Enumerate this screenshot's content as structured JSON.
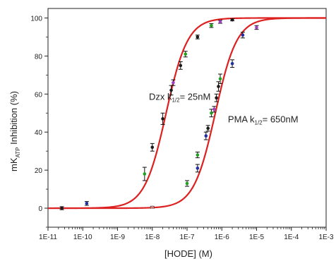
{
  "chart_data": {
    "type": "scatter",
    "title": "",
    "xlabel": "[HODE] (M)",
    "ylabel_main": "mK",
    "ylabel_sub": "ATP",
    "ylabel_tail": " Inhibition (%)",
    "x_scale": "log",
    "xlim": [
      1e-11,
      0.001
    ],
    "ylim": [
      -10,
      105
    ],
    "x_ticks": [
      1e-11,
      1e-10,
      1e-09,
      1e-08,
      1e-07,
      1e-06,
      1e-05,
      0.0001,
      0.001
    ],
    "x_tick_labels": [
      "1E-11",
      "1E-10",
      "1E-9",
      "1E-8",
      "1E-7",
      "1E-6",
      "1E-5",
      "1E-4",
      "1E-3"
    ],
    "y_ticks": [
      0,
      20,
      40,
      60,
      80,
      100
    ],
    "y_tick_labels": [
      "0",
      "20",
      "40",
      "60",
      "80",
      "100"
    ],
    "grid": false,
    "curve_color": "#dd2020",
    "annotations": [
      {
        "id": "dzx",
        "prefix": "Dzx k",
        "sub": "1/2",
        "suffix": "= 25nM",
        "x": 8e-09,
        "y": 57
      },
      {
        "id": "pma",
        "prefix": "PMA k",
        "sub": "1/2",
        "suffix": "= 650nM",
        "x": 1.5e-06,
        "y": 45
      }
    ],
    "series": [
      {
        "name": "Dzx",
        "k_half": 2.5e-08,
        "hill": 1.4,
        "points": [
          {
            "x": 2.5e-11,
            "y": 0,
            "err": 0.8,
            "color": "#1a1a1a"
          },
          {
            "x": 1.3e-10,
            "y": 2.5,
            "err": 1.0,
            "color": "#2030a0"
          },
          {
            "x": 6e-09,
            "y": 18,
            "err": 3.5,
            "color": "#20a020"
          },
          {
            "x": 1e-08,
            "y": 32,
            "err": 2.0,
            "color": "#1a1a1a"
          },
          {
            "x": 2e-08,
            "y": 47,
            "err": 3.0,
            "color": "#1a1a1a"
          },
          {
            "x": 3.5e-08,
            "y": 62,
            "err": 2.5,
            "color": "#1a1a1a"
          },
          {
            "x": 4e-08,
            "y": 66,
            "err": 1.5,
            "color": "#a040c0"
          },
          {
            "x": 6.5e-08,
            "y": 75,
            "err": 2.0,
            "color": "#1a1a1a"
          },
          {
            "x": 9e-08,
            "y": 81,
            "err": 1.5,
            "color": "#20a020"
          },
          {
            "x": 2e-07,
            "y": 90,
            "err": 1.0,
            "color": "#1a1a1a"
          },
          {
            "x": 5e-07,
            "y": 96,
            "err": 1.0,
            "color": "#20a020"
          },
          {
            "x": 9e-07,
            "y": 98,
            "err": 0.8,
            "color": "#a040c0"
          },
          {
            "x": 2e-06,
            "y": 99,
            "err": 0.5,
            "color": "#1a1a1a"
          }
        ]
      },
      {
        "name": "PMA",
        "k_half": 6.5e-07,
        "hill": 1.4,
        "points": [
          {
            "x": 1e-08,
            "y": 0.5,
            "err": 0.5,
            "color": "#c08080"
          },
          {
            "x": 1e-07,
            "y": 13,
            "err": 1.5,
            "color": "#20a020"
          },
          {
            "x": 2e-07,
            "y": 21,
            "err": 2.0,
            "color": "#2030a0"
          },
          {
            "x": 2e-07,
            "y": 28,
            "err": 1.5,
            "color": "#20a020"
          },
          {
            "x": 3.5e-07,
            "y": 38,
            "err": 2.0,
            "color": "#2030a0"
          },
          {
            "x": 4e-07,
            "y": 42,
            "err": 1.5,
            "color": "#1a1a1a"
          },
          {
            "x": 5e-07,
            "y": 50,
            "err": 2.0,
            "color": "#20a020"
          },
          {
            "x": 6e-07,
            "y": 52,
            "err": 1.5,
            "color": "#a040c0"
          },
          {
            "x": 7e-07,
            "y": 58,
            "err": 2.0,
            "color": "#1a1a1a"
          },
          {
            "x": 8e-07,
            "y": 64,
            "err": 2.5,
            "color": "#1a1a1a"
          },
          {
            "x": 9e-07,
            "y": 68,
            "err": 2.5,
            "color": "#20a020"
          },
          {
            "x": 2e-06,
            "y": 76,
            "err": 2.0,
            "color": "#2030a0"
          },
          {
            "x": 4e-06,
            "y": 91,
            "err": 1.5,
            "color": "#2030a0"
          },
          {
            "x": 1e-05,
            "y": 95,
            "err": 1.0,
            "color": "#a040c0"
          }
        ]
      }
    ]
  }
}
